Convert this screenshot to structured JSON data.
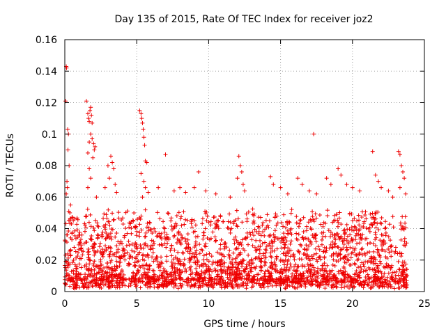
{
  "chart_data": {
    "type": "scatter",
    "title": "Day 135 of 2015, Rate Of TEC Index for receiver joz2",
    "xlabel": "GPS time / hours",
    "ylabel": "ROTI / TECUs",
    "xlim": [
      0,
      25
    ],
    "ylim": [
      0,
      0.16
    ],
    "x_ticks": [
      0,
      5,
      10,
      15,
      20,
      25
    ],
    "x_tick_labels": [
      "0",
      "5",
      "10",
      "15",
      "20",
      "25"
    ],
    "y_ticks": [
      0,
      0.02,
      0.04,
      0.06,
      0.08,
      0.1,
      0.12,
      0.14,
      0.16
    ],
    "y_tick_labels": [
      "0",
      "0.02",
      "0.04",
      "0.06",
      "0.08",
      "0.1",
      "0.12",
      "0.14",
      "0.16"
    ],
    "grid": true,
    "marker": "+",
    "series": [
      {
        "name": "ROTI",
        "color": "#ee0000",
        "x_range": [
          0,
          23.8
        ],
        "points": [
          [
            0.05,
            0.121
          ],
          [
            0.1,
            0.143
          ],
          [
            0.12,
            0.142
          ],
          [
            0.2,
            0.103
          ],
          [
            0.25,
            0.1
          ],
          [
            0.22,
            0.09
          ],
          [
            0.3,
            0.08
          ],
          [
            0.15,
            0.07
          ],
          [
            0.18,
            0.066
          ],
          [
            0.1,
            0.062
          ],
          [
            0.4,
            0.055
          ],
          [
            0.35,
            0.05
          ],
          [
            1.5,
            0.121
          ],
          [
            1.6,
            0.113
          ],
          [
            1.65,
            0.11
          ],
          [
            1.7,
            0.108
          ],
          [
            1.75,
            0.115
          ],
          [
            1.8,
            0.117
          ],
          [
            1.85,
            0.112
          ],
          [
            1.9,
            0.107
          ],
          [
            1.8,
            0.1
          ],
          [
            1.7,
            0.095
          ],
          [
            1.9,
            0.097
          ],
          [
            2.0,
            0.094
          ],
          [
            2.05,
            0.09
          ],
          [
            2.1,
            0.092
          ],
          [
            1.6,
            0.088
          ],
          [
            1.95,
            0.085
          ],
          [
            1.7,
            0.078
          ],
          [
            1.8,
            0.072
          ],
          [
            1.6,
            0.066
          ],
          [
            2.2,
            0.06
          ],
          [
            3.0,
            0.08
          ],
          [
            3.2,
            0.086
          ],
          [
            3.3,
            0.082
          ],
          [
            3.4,
            0.078
          ],
          [
            3.1,
            0.072
          ],
          [
            3.5,
            0.068
          ],
          [
            2.8,
            0.066
          ],
          [
            3.6,
            0.063
          ],
          [
            5.2,
            0.115
          ],
          [
            5.3,
            0.113
          ],
          [
            5.35,
            0.11
          ],
          [
            5.4,
            0.107
          ],
          [
            5.45,
            0.103
          ],
          [
            5.5,
            0.098
          ],
          [
            5.55,
            0.093
          ],
          [
            5.6,
            0.083
          ],
          [
            5.7,
            0.082
          ],
          [
            5.3,
            0.075
          ],
          [
            5.5,
            0.07
          ],
          [
            5.6,
            0.066
          ],
          [
            5.8,
            0.063
          ],
          [
            5.4,
            0.06
          ],
          [
            7.0,
            0.087
          ],
          [
            6.5,
            0.066
          ],
          [
            7.6,
            0.064
          ],
          [
            8.0,
            0.066
          ],
          [
            8.4,
            0.063
          ],
          [
            9.3,
            0.076
          ],
          [
            9.0,
            0.066
          ],
          [
            9.8,
            0.064
          ],
          [
            10.5,
            0.062
          ],
          [
            12.1,
            0.086
          ],
          [
            12.2,
            0.08
          ],
          [
            12.3,
            0.076
          ],
          [
            12.0,
            0.072
          ],
          [
            12.4,
            0.068
          ],
          [
            12.5,
            0.064
          ],
          [
            11.5,
            0.06
          ],
          [
            14.3,
            0.073
          ],
          [
            14.5,
            0.068
          ],
          [
            15.0,
            0.066
          ],
          [
            15.5,
            0.062
          ],
          [
            16.2,
            0.072
          ],
          [
            16.5,
            0.068
          ],
          [
            17.0,
            0.064
          ],
          [
            17.3,
            0.1
          ],
          [
            17.5,
            0.062
          ],
          [
            18.2,
            0.072
          ],
          [
            18.5,
            0.068
          ],
          [
            19.0,
            0.078
          ],
          [
            19.2,
            0.074
          ],
          [
            19.6,
            0.068
          ],
          [
            20.0,
            0.066
          ],
          [
            20.5,
            0.064
          ],
          [
            21.4,
            0.089
          ],
          [
            21.6,
            0.074
          ],
          [
            21.8,
            0.07
          ],
          [
            22.0,
            0.066
          ],
          [
            22.5,
            0.064
          ],
          [
            23.2,
            0.089
          ],
          [
            23.3,
            0.087
          ],
          [
            23.4,
            0.08
          ],
          [
            23.5,
            0.076
          ],
          [
            23.6,
            0.072
          ],
          [
            23.3,
            0.066
          ],
          [
            23.7,
            0.062
          ],
          [
            22.8,
            0.06
          ]
        ]
      }
    ]
  }
}
